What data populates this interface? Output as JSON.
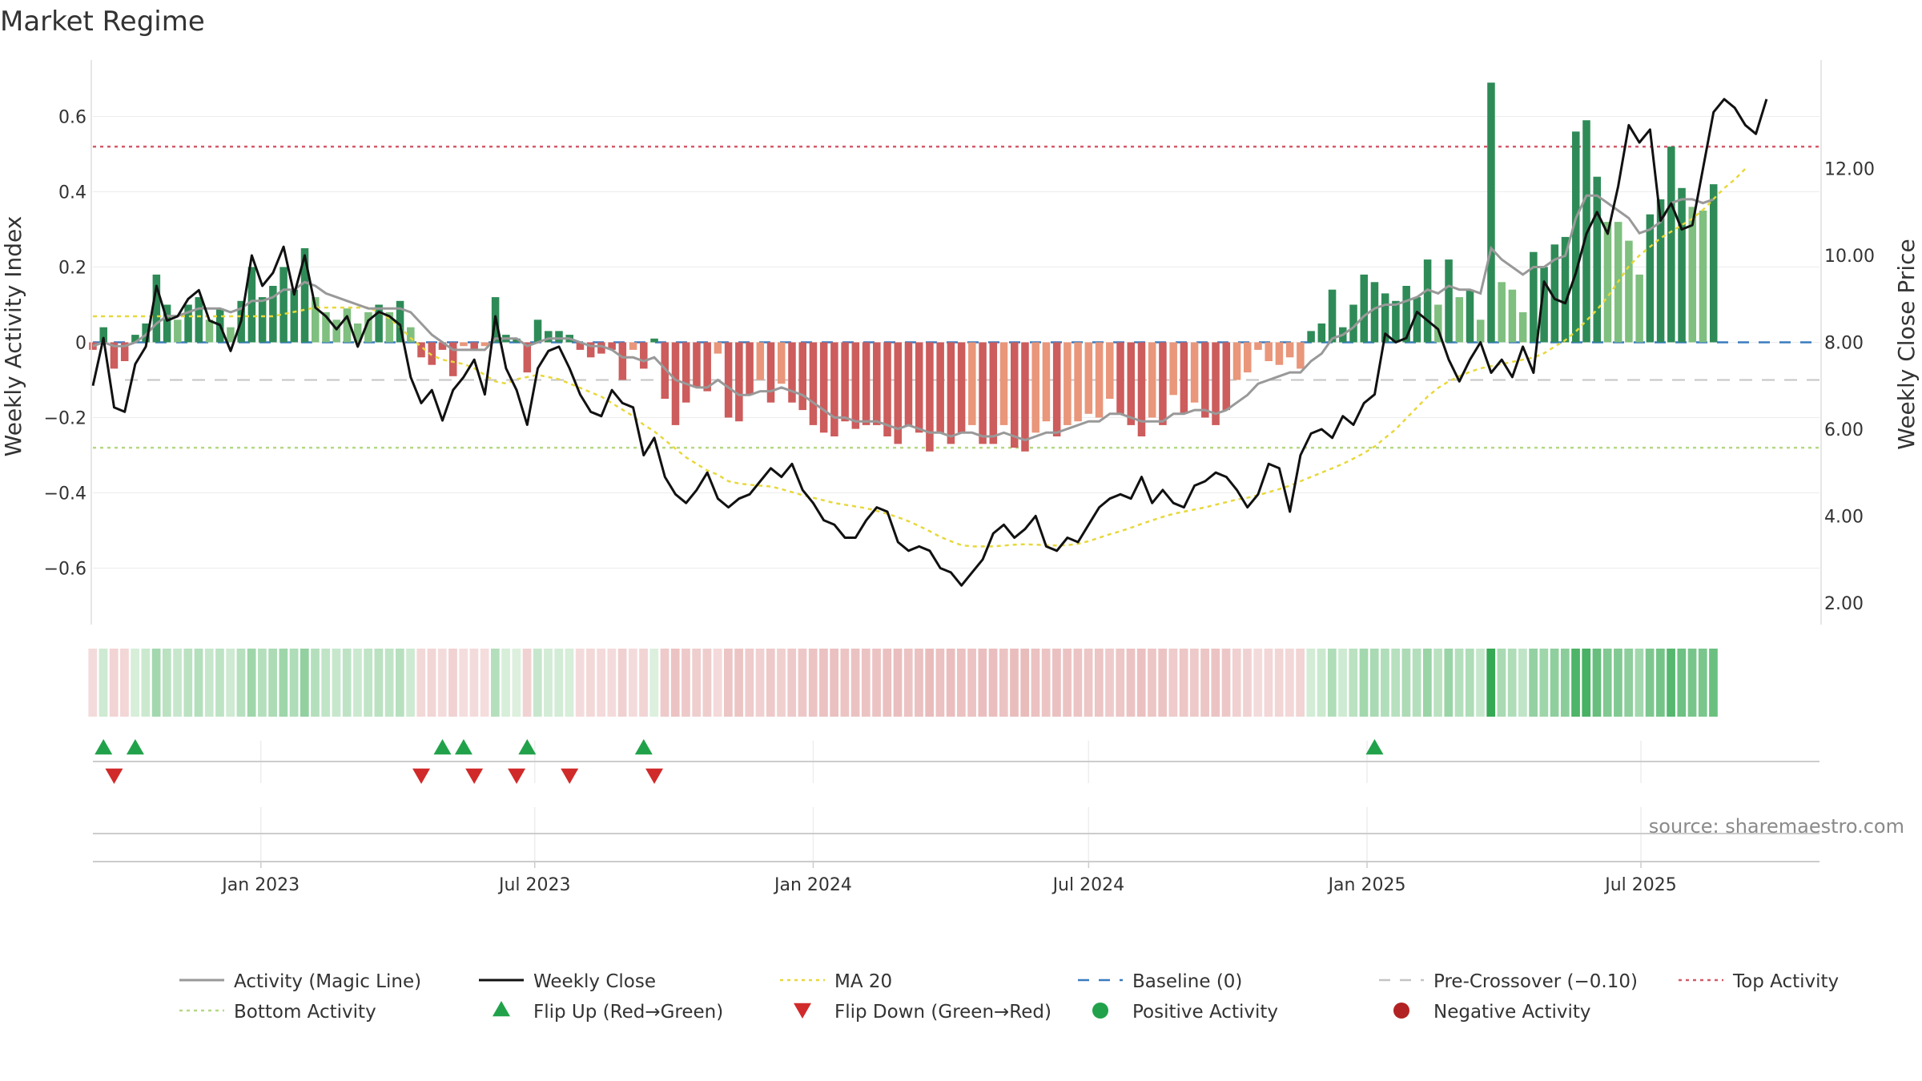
{
  "chart_data": {
    "type": "bar",
    "title": "Market Regime",
    "ylabel": "Weekly Activity Index",
    "ylabel_right": "Weekly Close Price",
    "source": "source: sharemaestro.com",
    "ylim": [
      -0.75,
      0.75
    ],
    "ylim_right": [
      1.5,
      14.5
    ],
    "yticks": [
      -0.6,
      -0.4,
      -0.2,
      0,
      0.2,
      0.4,
      0.6
    ],
    "ytick_labels": [
      "−0.6",
      "−0.4",
      "−0.2",
      "0",
      "0.2",
      "0.4",
      "0.6"
    ],
    "yticks_right": [
      2,
      4,
      6,
      8,
      10,
      12
    ],
    "ytick_labels_right": [
      "2.00",
      "4.00",
      "6.00",
      "8.00",
      "10.00",
      "12.00"
    ],
    "x_range": [
      "2022-09-12",
      "2025-10-27"
    ],
    "x_ticks": [
      {
        "date": "2023-01-01",
        "label": "Jan 2023"
      },
      {
        "date": "2023-07-01",
        "label": "Jul 2023"
      },
      {
        "date": "2024-01-01",
        "label": "Jan 2024"
      },
      {
        "date": "2024-07-01",
        "label": "Jul 2024"
      },
      {
        "date": "2025-01-01",
        "label": "Jan 2025"
      },
      {
        "date": "2025-07-01",
        "label": "Jul 2025"
      }
    ],
    "reference_lines": {
      "top_activity": 0.52,
      "bottom_activity": -0.28,
      "pre_crossover": -0.1,
      "baseline": 0
    },
    "start_week": "2022-09-12",
    "week_interval_days": 7,
    "activity": [
      -0.02,
      0.04,
      -0.07,
      -0.05,
      0.02,
      0.05,
      0.18,
      0.1,
      0.06,
      0.1,
      0.12,
      0.06,
      0.09,
      0.04,
      0.11,
      0.2,
      0.12,
      0.15,
      0.2,
      0.14,
      0.25,
      0.12,
      0.08,
      0.06,
      0.09,
      0.05,
      0.08,
      0.1,
      0.08,
      0.11,
      0.04,
      -0.04,
      -0.06,
      -0.02,
      -0.09,
      -0.01,
      -0.02,
      -0.01,
      0.12,
      0.02,
      0.01,
      -0.08,
      0.06,
      0.03,
      0.03,
      0.02,
      -0.02,
      -0.04,
      -0.03,
      -0.02,
      -0.1,
      -0.02,
      -0.07,
      0.01,
      -0.15,
      -0.22,
      -0.16,
      -0.12,
      -0.13,
      -0.03,
      -0.2,
      -0.21,
      -0.14,
      -0.1,
      -0.16,
      -0.11,
      -0.16,
      -0.18,
      -0.22,
      -0.24,
      -0.25,
      -0.21,
      -0.23,
      -0.22,
      -0.22,
      -0.25,
      -0.27,
      -0.22,
      -0.24,
      -0.29,
      -0.24,
      -0.27,
      -0.24,
      -0.22,
      -0.27,
      -0.27,
      -0.22,
      -0.28,
      -0.29,
      -0.24,
      -0.21,
      -0.25,
      -0.22,
      -0.21,
      -0.19,
      -0.2,
      -0.15,
      -0.19,
      -0.22,
      -0.25,
      -0.2,
      -0.22,
      -0.14,
      -0.19,
      -0.16,
      -0.2,
      -0.22,
      -0.18,
      -0.1,
      -0.08,
      -0.02,
      -0.05,
      -0.06,
      -0.04,
      -0.07,
      0.03,
      0.05,
      0.14,
      0.04,
      0.1,
      0.18,
      0.16,
      0.13,
      0.11,
      0.15,
      0.12,
      0.22,
      0.1,
      0.22,
      0.12,
      0.14,
      0.06,
      0.69,
      0.16,
      0.14,
      0.08,
      0.24,
      0.2,
      0.26,
      0.28,
      0.56,
      0.59,
      0.44,
      0.32,
      0.32,
      0.27,
      0.18,
      0.34,
      0.38,
      0.52,
      0.41,
      0.36,
      0.35,
      0.42
    ],
    "magic_line": [
      -0.01,
      0.0,
      -0.01,
      -0.01,
      0.0,
      0.02,
      0.05,
      0.07,
      0.07,
      0.08,
      0.09,
      0.09,
      0.09,
      0.08,
      0.09,
      0.11,
      0.11,
      0.12,
      0.14,
      0.14,
      0.16,
      0.15,
      0.13,
      0.12,
      0.11,
      0.1,
      0.09,
      0.09,
      0.09,
      0.09,
      0.08,
      0.05,
      0.02,
      0.0,
      -0.02,
      -0.02,
      -0.02,
      -0.02,
      0.01,
      0.01,
      0.01,
      -0.01,
      0.0,
      0.01,
      0.01,
      0.01,
      0.0,
      -0.01,
      -0.01,
      -0.02,
      -0.04,
      -0.04,
      -0.05,
      -0.04,
      -0.07,
      -0.1,
      -0.11,
      -0.12,
      -0.12,
      -0.1,
      -0.12,
      -0.14,
      -0.14,
      -0.13,
      -0.13,
      -0.12,
      -0.13,
      -0.14,
      -0.16,
      -0.18,
      -0.2,
      -0.2,
      -0.21,
      -0.21,
      -0.21,
      -0.22,
      -0.23,
      -0.22,
      -0.23,
      -0.24,
      -0.24,
      -0.25,
      -0.24,
      -0.24,
      -0.25,
      -0.25,
      -0.24,
      -0.25,
      -0.26,
      -0.25,
      -0.24,
      -0.24,
      -0.23,
      -0.22,
      -0.21,
      -0.21,
      -0.19,
      -0.19,
      -0.2,
      -0.21,
      -0.21,
      -0.21,
      -0.19,
      -0.19,
      -0.18,
      -0.18,
      -0.19,
      -0.18,
      -0.16,
      -0.14,
      -0.11,
      -0.1,
      -0.09,
      -0.08,
      -0.08,
      -0.05,
      -0.03,
      0.01,
      0.02,
      0.04,
      0.07,
      0.09,
      0.1,
      0.1,
      0.11,
      0.12,
      0.14,
      0.13,
      0.15,
      0.14,
      0.14,
      0.13,
      0.25,
      0.22,
      0.2,
      0.18,
      0.2,
      0.2,
      0.22,
      0.23,
      0.33,
      0.39,
      0.39,
      0.37,
      0.35,
      0.33,
      0.29,
      0.3,
      0.32,
      0.37,
      0.38,
      0.38,
      0.37,
      0.38
    ],
    "weekly_close": [
      7.0,
      8.1,
      6.5,
      6.4,
      7.5,
      7.9,
      9.3,
      8.5,
      8.6,
      9.0,
      9.2,
      8.5,
      8.4,
      7.8,
      8.5,
      10.0,
      9.3,
      9.6,
      10.2,
      9.1,
      10.0,
      8.8,
      8.6,
      8.3,
      8.6,
      7.9,
      8.5,
      8.7,
      8.6,
      8.4,
      7.2,
      6.6,
      6.9,
      6.2,
      6.9,
      7.2,
      7.6,
      6.8,
      8.6,
      7.4,
      6.9,
      6.1,
      7.4,
      7.8,
      7.9,
      7.4,
      6.8,
      6.4,
      6.3,
      6.9,
      6.6,
      6.5,
      5.4,
      5.8,
      4.9,
      4.5,
      4.3,
      4.6,
      5.0,
      4.4,
      4.2,
      4.4,
      4.5,
      4.8,
      5.1,
      4.9,
      5.2,
      4.6,
      4.3,
      3.9,
      3.8,
      3.5,
      3.5,
      3.9,
      4.2,
      4.1,
      3.4,
      3.2,
      3.3,
      3.2,
      2.8,
      2.7,
      2.4,
      2.7,
      3.0,
      3.6,
      3.8,
      3.5,
      3.7,
      4.0,
      3.3,
      3.2,
      3.5,
      3.4,
      3.8,
      4.2,
      4.4,
      4.5,
      4.4,
      4.9,
      4.3,
      4.6,
      4.3,
      4.2,
      4.7,
      4.8,
      5.0,
      4.9,
      4.6,
      4.2,
      4.5,
      5.2,
      5.1,
      4.1,
      5.4,
      5.9,
      6.0,
      5.8,
      6.3,
      6.1,
      6.6,
      6.8,
      8.2,
      8.0,
      8.1,
      8.7,
      8.5,
      8.3,
      7.6,
      7.1,
      7.6,
      8.0,
      7.3,
      7.6,
      7.2,
      7.9,
      7.3,
      9.4,
      9.0,
      8.9,
      9.6,
      10.5,
      11.0,
      10.5,
      11.6,
      13.0,
      12.6,
      12.9,
      10.8,
      11.2,
      10.6,
      10.7,
      12.0,
      13.3,
      13.6,
      13.4,
      13.0,
      12.8,
      13.6
    ],
    "ma20": [
      8.6,
      8.6,
      8.6,
      8.6,
      8.6,
      8.6,
      8.6,
      8.6,
      8.6,
      8.6,
      8.6,
      8.6,
      8.6,
      8.6,
      8.6,
      8.6,
      8.6,
      8.6,
      8.65,
      8.7,
      8.75,
      8.8,
      8.8,
      8.8,
      8.8,
      8.8,
      8.8,
      8.7,
      8.55,
      8.35,
      8.1,
      7.9,
      7.7,
      7.6,
      7.55,
      7.5,
      7.4,
      7.25,
      7.1,
      7.05,
      7.15,
      7.2,
      7.25,
      7.2,
      7.15,
      7.05,
      6.95,
      6.85,
      6.75,
      6.6,
      6.45,
      6.3,
      6.1,
      5.95,
      5.75,
      5.55,
      5.35,
      5.2,
      5.05,
      4.95,
      4.8,
      4.75,
      4.72,
      4.7,
      4.68,
      4.62,
      4.55,
      4.48,
      4.42,
      4.36,
      4.3,
      4.26,
      4.22,
      4.18,
      4.12,
      4.05,
      3.97,
      3.88,
      3.77,
      3.65,
      3.52,
      3.42,
      3.33,
      3.3,
      3.3,
      3.3,
      3.32,
      3.34,
      3.35,
      3.34,
      3.33,
      3.32,
      3.33,
      3.36,
      3.42,
      3.5,
      3.58,
      3.65,
      3.73,
      3.82,
      3.9,
      3.98,
      4.05,
      4.1,
      4.15,
      4.2,
      4.26,
      4.32,
      4.38,
      4.42,
      4.48,
      4.55,
      4.62,
      4.7,
      4.8,
      4.9,
      5.0,
      5.1,
      5.2,
      5.32,
      5.45,
      5.6,
      5.8,
      6.0,
      6.25,
      6.5,
      6.75,
      6.95,
      7.1,
      7.22,
      7.32,
      7.4,
      7.45,
      7.5,
      7.55,
      7.6,
      7.65,
      7.75,
      7.9,
      8.05,
      8.25,
      8.5,
      8.75,
      9.05,
      9.4,
      9.75,
      10.0,
      10.2,
      10.4,
      10.55,
      10.7,
      10.85,
      11.05,
      11.3,
      11.55,
      11.75,
      12.0
    ],
    "flips_up": [
      "2022-09-19",
      "2022-10-10",
      "2023-05-01",
      "2023-05-15",
      "2023-06-26",
      "2023-09-11",
      "2025-01-06"
    ],
    "flips_down": [
      "2022-09-26",
      "2023-04-17",
      "2023-05-22",
      "2023-06-19",
      "2023-07-24",
      "2023-09-18"
    ],
    "legend": [
      {
        "label": "Activity (Magic Line)",
        "style": "solid",
        "color": "#999999"
      },
      {
        "label": "Weekly Close",
        "style": "solid",
        "color": "#111111"
      },
      {
        "label": "MA 20",
        "style": "dotted",
        "color": "#e8d83a"
      },
      {
        "label": "Baseline (0)",
        "style": "dashed",
        "color": "#3a7bbf"
      },
      {
        "label": "Pre-Crossover (−0.10)",
        "style": "dashed",
        "color": "#c4c4c4"
      },
      {
        "label": "Top Activity",
        "style": "dotted",
        "color": "#d45a6a"
      },
      {
        "label": "Bottom Activity",
        "style": "dotted",
        "color": "#b5d884"
      },
      {
        "label": "Flip Up (Red→Green)",
        "style": "triangle-up",
        "color": "#21a24a"
      },
      {
        "label": "Flip Down (Green→Red)",
        "style": "triangle-down",
        "color": "#d12a2a"
      },
      {
        "label": "Positive Activity",
        "style": "circle",
        "color": "#21a24a"
      },
      {
        "label": "Negative Activity",
        "style": "circle",
        "color": "#b22222"
      }
    ]
  },
  "colors": {
    "pos_strong": "#2e8b57",
    "pos_light": "#7fbf7f",
    "neg_strong": "#cd5c5c",
    "neg_light": "#e9967a",
    "close_line": "#111111",
    "magic_line": "#999999",
    "ma20_line": "#e8d83a",
    "baseline": "#3a7bbf",
    "pre_crossover": "#c4c4c4",
    "top_activity": "#d45a6a",
    "bottom_activity": "#b5d884",
    "grid": "#ececec",
    "flip_up": "#21a24a",
    "flip_down": "#d12a2a"
  }
}
